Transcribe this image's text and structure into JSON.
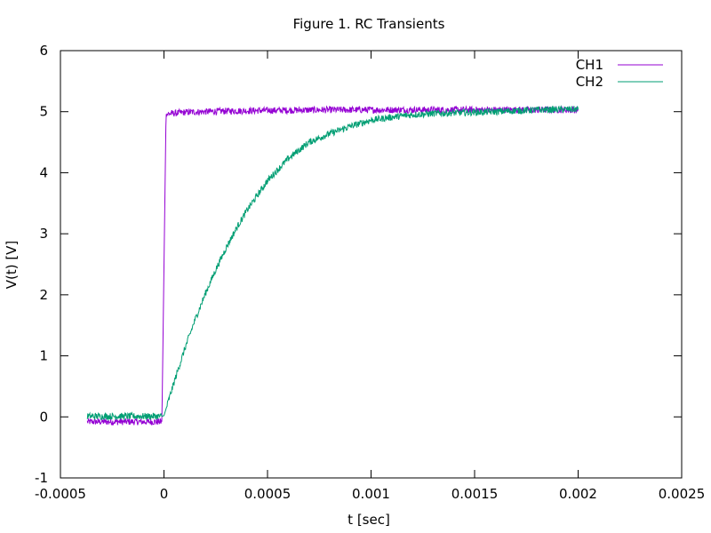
{
  "chart_data": {
    "type": "line",
    "title": "Figure 1. RC Transients",
    "xlabel": "t [sec]",
    "ylabel": "V(t) [V]",
    "xlim": [
      -0.0005,
      0.0025
    ],
    "ylim": [
      -1,
      6
    ],
    "xticks": [
      {
        "value": -0.0005,
        "label": "-0.0005"
      },
      {
        "value": 0,
        "label": "0"
      },
      {
        "value": 0.0005,
        "label": "0.0005"
      },
      {
        "value": 0.001,
        "label": "0.001"
      },
      {
        "value": 0.0015,
        "label": "0.0015"
      },
      {
        "value": 0.002,
        "label": "0.002"
      },
      {
        "value": 0.0025,
        "label": "0.0025"
      }
    ],
    "yticks": [
      {
        "value": -1,
        "label": "-1"
      },
      {
        "value": 0,
        "label": "0"
      },
      {
        "value": 1,
        "label": "1"
      },
      {
        "value": 2,
        "label": "2"
      },
      {
        "value": 3,
        "label": "3"
      },
      {
        "value": 4,
        "label": "4"
      },
      {
        "value": 5,
        "label": "5"
      },
      {
        "value": 6,
        "label": "6"
      }
    ],
    "grid": false,
    "legend_position": "top-right",
    "series": [
      {
        "name": "CH1",
        "color": "#9400d3",
        "x": [
          -0.00037,
          -0.0003,
          -0.0002,
          -0.0001,
          -1e-05,
          0.0,
          1e-05,
          0.0001,
          0.0003,
          0.0005,
          0.0008,
          0.001,
          0.0013,
          0.0016,
          0.002
        ],
        "y": [
          -0.08,
          -0.08,
          -0.08,
          -0.08,
          -0.08,
          2.45,
          4.96,
          4.99,
          5.01,
          5.02,
          5.03,
          5.03,
          5.03,
          5.03,
          5.03
        ]
      },
      {
        "name": "CH2",
        "color": "#009e73",
        "x": [
          -0.00037,
          -0.0002,
          -1e-05,
          0.0,
          5e-05,
          0.0001,
          0.00015,
          0.0002,
          0.00025,
          0.0003,
          0.00035,
          0.0004,
          0.0005,
          0.0006,
          0.0007,
          0.0008,
          0.0009,
          0.001,
          0.0011,
          0.0012,
          0.0013,
          0.0014,
          0.0015,
          0.0016,
          0.0018,
          0.002
        ],
        "y": [
          0.01,
          0.01,
          0.01,
          0.02,
          0.58,
          1.11,
          1.59,
          2.02,
          2.41,
          2.77,
          3.09,
          3.38,
          3.87,
          4.23,
          4.5,
          4.64,
          4.76,
          4.86,
          4.91,
          4.95,
          4.97,
          4.98,
          4.99,
          5.0,
          5.03,
          5.04
        ]
      }
    ]
  }
}
